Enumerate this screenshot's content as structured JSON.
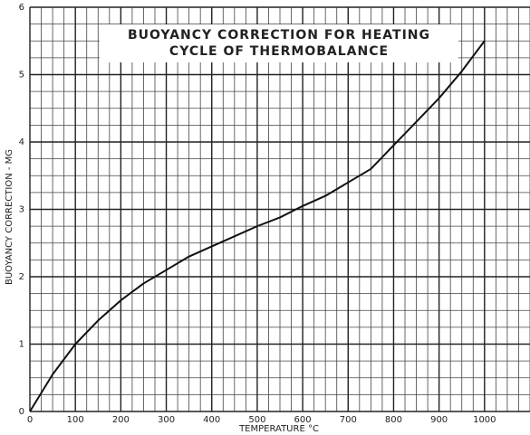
{
  "chart_data": {
    "type": "line",
    "title": [
      "BUOYANCY CORRECTION FOR HEATING",
      "CYCLE OF THERMOBALANCE"
    ],
    "xlabel": "TEMPERATURE °C",
    "ylabel": "BUOYANCY CORRECTION - MG",
    "x": [
      0,
      50,
      100,
      150,
      200,
      250,
      300,
      350,
      400,
      450,
      500,
      550,
      600,
      650,
      700,
      750,
      800,
      850,
      900,
      950,
      1000
    ],
    "series": [
      {
        "name": "Buoyancy correction",
        "color": "#111111",
        "values": [
          0,
          0.55,
          1.0,
          1.35,
          1.65,
          1.9,
          2.1,
          2.3,
          2.45,
          2.6,
          2.75,
          2.88,
          3.05,
          3.2,
          3.4,
          3.6,
          3.95,
          4.3,
          4.65,
          5.05,
          5.5
        ]
      }
    ],
    "xlim": [
      0,
      1100
    ],
    "xticks": [
      0,
      100,
      200,
      300,
      400,
      500,
      600,
      700,
      800,
      900,
      1000
    ],
    "ylim": [
      0,
      6
    ],
    "yticks": [
      0,
      1,
      2,
      3,
      4,
      5,
      6
    ],
    "grid": true
  }
}
